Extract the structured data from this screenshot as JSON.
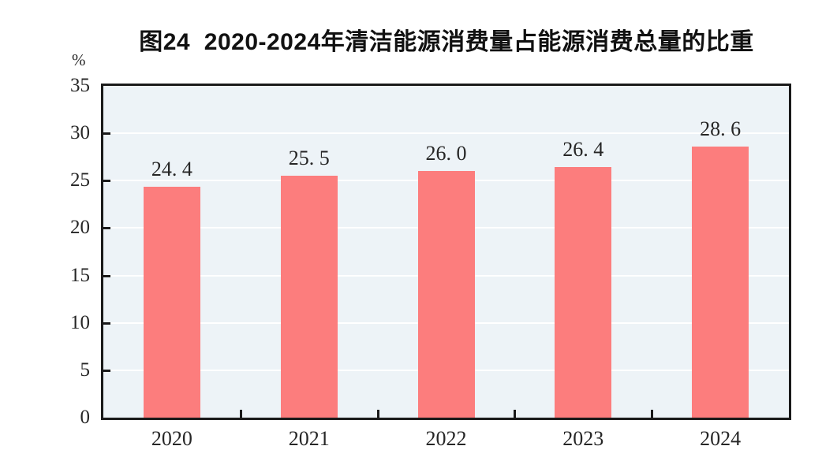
{
  "chart_data": {
    "type": "bar",
    "title": "图24  2020-2024年清洁能源消费量占能源消费总量的比重",
    "unit_label": "%",
    "categories": [
      "2020",
      "2021",
      "2022",
      "2023",
      "2024"
    ],
    "values": [
      24.4,
      25.5,
      26.0,
      26.4,
      28.6
    ],
    "value_labels": [
      "24. 4",
      "25. 5",
      "26. 0",
      "26. 4",
      "28. 6"
    ],
    "xlabel": "",
    "ylabel": "%",
    "ylim": [
      0,
      35
    ],
    "yticks": [
      0,
      5,
      10,
      15,
      20,
      25,
      30,
      35
    ],
    "grid": true,
    "legend_position": "none",
    "colors": {
      "bar": "#fc7d7d",
      "plot_background": "#edf3f7",
      "gridline": "#ffffff",
      "axis": "#1a1a1a",
      "text": "#262626",
      "title_text": "#111111",
      "page_background": "#ffffff"
    }
  }
}
